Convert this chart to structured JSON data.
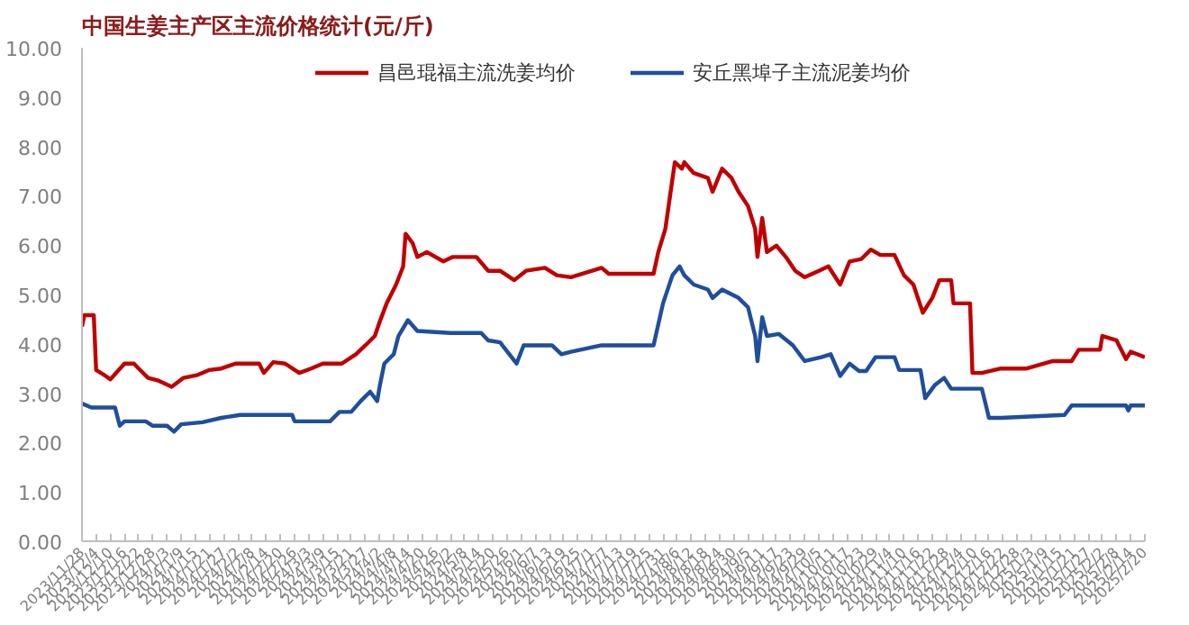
{
  "chart_data": {
    "type": "line",
    "title": "中国生姜主产区主流价格统计(元/斤)",
    "legend": "top",
    "grid": false,
    "line_style": "solid",
    "ylim": [
      0,
      10
    ],
    "yticks": [
      {
        "value": 0,
        "label": "0.00"
      },
      {
        "value": 1,
        "label": "1.00"
      },
      {
        "value": 2,
        "label": "2.00"
      },
      {
        "value": 3,
        "label": "3.00"
      },
      {
        "value": 4,
        "label": "4.00"
      },
      {
        "value": 5,
        "label": "5.00"
      },
      {
        "value": 6,
        "label": "6.00"
      },
      {
        "value": 7,
        "label": "7.00"
      },
      {
        "value": 8,
        "label": "8.00"
      },
      {
        "value": 9,
        "label": "9.00"
      },
      {
        "value": 10,
        "label": "10.00"
      }
    ],
    "xlim": [
      "2023-11-28",
      "2025-02-20"
    ],
    "xticks": [
      {
        "value": "2023-11-28",
        "label": "2023/11/28"
      },
      {
        "value": "2023-12-04",
        "label": "2023/12/4"
      },
      {
        "value": "2023-12-10",
        "label": "2023/12/10"
      },
      {
        "value": "2023-12-16",
        "label": "2023/12/16"
      },
      {
        "value": "2023-12-22",
        "label": "2023/12/22"
      },
      {
        "value": "2023-12-28",
        "label": "2023/12/28"
      },
      {
        "value": "2024-01-03",
        "label": "2024/1/3"
      },
      {
        "value": "2024-01-09",
        "label": "2024/1/9"
      },
      {
        "value": "2024-01-15",
        "label": "2024/1/15"
      },
      {
        "value": "2024-01-21",
        "label": "2024/1/21"
      },
      {
        "value": "2024-01-27",
        "label": "2024/1/27"
      },
      {
        "value": "2024-02-02",
        "label": "2024/2/2"
      },
      {
        "value": "2024-02-08",
        "label": "2024/2/8"
      },
      {
        "value": "2024-02-14",
        "label": "2024/2/14"
      },
      {
        "value": "2024-02-20",
        "label": "2024/2/20"
      },
      {
        "value": "2024-02-26",
        "label": "2024/2/26"
      },
      {
        "value": "2024-03-03",
        "label": "2024/3/3"
      },
      {
        "value": "2024-03-09",
        "label": "2024/3/9"
      },
      {
        "value": "2024-03-15",
        "label": "2024/3/15"
      },
      {
        "value": "2024-03-21",
        "label": "2024/3/21"
      },
      {
        "value": "2024-03-27",
        "label": "2024/3/27"
      },
      {
        "value": "2024-04-02",
        "label": "2024/4/2"
      },
      {
        "value": "2024-04-08",
        "label": "2024/4/8"
      },
      {
        "value": "2024-04-14",
        "label": "2024/4/14"
      },
      {
        "value": "2024-04-20",
        "label": "2024/4/20"
      },
      {
        "value": "2024-04-26",
        "label": "2024/4/26"
      },
      {
        "value": "2024-05-02",
        "label": "2024/5/2"
      },
      {
        "value": "2024-05-08",
        "label": "2024/5/8"
      },
      {
        "value": "2024-05-14",
        "label": "2024/5/14"
      },
      {
        "value": "2024-05-20",
        "label": "2024/5/20"
      },
      {
        "value": "2024-05-26",
        "label": "2024/5/26"
      },
      {
        "value": "2024-06-01",
        "label": "2024/6/1"
      },
      {
        "value": "2024-06-07",
        "label": "2024/6/7"
      },
      {
        "value": "2024-06-13",
        "label": "2024/6/13"
      },
      {
        "value": "2024-06-19",
        "label": "2024/6/19"
      },
      {
        "value": "2024-06-25",
        "label": "2024/6/25"
      },
      {
        "value": "2024-07-01",
        "label": "2024/7/1"
      },
      {
        "value": "2024-07-07",
        "label": "2024/7/7"
      },
      {
        "value": "2024-07-13",
        "label": "2024/7/13"
      },
      {
        "value": "2024-07-19",
        "label": "2024/7/19"
      },
      {
        "value": "2024-07-25",
        "label": "2024/7/25"
      },
      {
        "value": "2024-07-31",
        "label": "2024/7/31"
      },
      {
        "value": "2024-08-06",
        "label": "2024/8/6"
      },
      {
        "value": "2024-08-12",
        "label": "2024/8/12"
      },
      {
        "value": "2024-08-18",
        "label": "2024/8/18"
      },
      {
        "value": "2024-08-24",
        "label": "2024/8/24"
      },
      {
        "value": "2024-08-30",
        "label": "2024/8/30"
      },
      {
        "value": "2024-09-05",
        "label": "2024/9/5"
      },
      {
        "value": "2024-09-11",
        "label": "2024/9/11"
      },
      {
        "value": "2024-09-17",
        "label": "2024/9/17"
      },
      {
        "value": "2024-09-23",
        "label": "2024/9/23"
      },
      {
        "value": "2024-09-29",
        "label": "2024/9/29"
      },
      {
        "value": "2024-10-05",
        "label": "2024/10/5"
      },
      {
        "value": "2024-10-11",
        "label": "2024/10/11"
      },
      {
        "value": "2024-10-17",
        "label": "2024/10/17"
      },
      {
        "value": "2024-10-23",
        "label": "2024/10/23"
      },
      {
        "value": "2024-10-29",
        "label": "2024/10/29"
      },
      {
        "value": "2024-11-04",
        "label": "2024/11/4"
      },
      {
        "value": "2024-11-10",
        "label": "2024/11/10"
      },
      {
        "value": "2024-11-16",
        "label": "2024/11/16"
      },
      {
        "value": "2024-11-22",
        "label": "2024/11/22"
      },
      {
        "value": "2024-11-28",
        "label": "2024/11/28"
      },
      {
        "value": "2024-12-04",
        "label": "2024/12/4"
      },
      {
        "value": "2024-12-10",
        "label": "2024/12/10"
      },
      {
        "value": "2024-12-16",
        "label": "2024/12/16"
      },
      {
        "value": "2024-12-22",
        "label": "2024/12/22"
      },
      {
        "value": "2024-12-28",
        "label": "2024/12/28"
      },
      {
        "value": "2025-01-03",
        "label": "2025/1/3"
      },
      {
        "value": "2025-01-09",
        "label": "2025/1/9"
      },
      {
        "value": "2025-01-15",
        "label": "2025/1/15"
      },
      {
        "value": "2025-01-21",
        "label": "2025/1/21"
      },
      {
        "value": "2025-01-27",
        "label": "2025/1/27"
      },
      {
        "value": "2025-02-02",
        "label": "2025/2/2"
      },
      {
        "value": "2025-02-08",
        "label": "2025/2/8"
      },
      {
        "value": "2025-02-14",
        "label": "2025/2/14"
      },
      {
        "value": "2025-02-20",
        "label": "2025/2/20"
      }
    ],
    "series": [
      {
        "name": "昌邑琨福主流洗姜均价",
        "color": "#c00000",
        "x": [
          "2023-11-28",
          "2023-11-29",
          "2023-12-03",
          "2023-12-04",
          "2023-12-08",
          "2023-12-10",
          "2023-12-16",
          "2023-12-20",
          "2023-12-22",
          "2023-12-26",
          "2023-12-30",
          "2024-01-05",
          "2024-01-10",
          "2024-01-16",
          "2024-01-21",
          "2024-01-26",
          "2024-02-01",
          "2024-02-11",
          "2024-02-13",
          "2024-02-17",
          "2024-02-22",
          "2024-02-28",
          "2024-03-04",
          "2024-03-09",
          "2024-03-17",
          "2024-03-23",
          "2024-03-27",
          "2024-03-31",
          "2024-04-02",
          "2024-04-05",
          "2024-04-09",
          "2024-04-12",
          "2024-04-13",
          "2024-04-16",
          "2024-04-18",
          "2024-04-22",
          "2024-04-29",
          "2024-05-03",
          "2024-05-13",
          "2024-05-18",
          "2024-05-23",
          "2024-05-29",
          "2024-06-03",
          "2024-06-11",
          "2024-06-16",
          "2024-06-22",
          "2024-07-05",
          "2024-07-08",
          "2024-07-27",
          "2024-07-29",
          "2024-08-01",
          "2024-08-05",
          "2024-08-08",
          "2024-08-09",
          "2024-08-13",
          "2024-08-19",
          "2024-08-21",
          "2024-08-25",
          "2024-08-29",
          "2024-09-01",
          "2024-09-05",
          "2024-09-08",
          "2024-09-09",
          "2024-09-11",
          "2024-09-13",
          "2024-09-17",
          "2024-09-21",
          "2024-09-25",
          "2024-09-29",
          "2024-10-05",
          "2024-10-09",
          "2024-10-14",
          "2024-10-18",
          "2024-10-23",
          "2024-10-27",
          "2024-10-31",
          "2024-11-06",
          "2024-11-10",
          "2024-11-14",
          "2024-11-18",
          "2024-11-22",
          "2024-11-25",
          "2024-11-30",
          "2024-12-01",
          "2024-12-08",
          "2024-12-09",
          "2024-12-13",
          "2024-12-21",
          "2025-01-01",
          "2025-01-12",
          "2025-01-20",
          "2025-01-23",
          "2025-02-01",
          "2025-02-02",
          "2025-02-08",
          "2025-02-12",
          "2025-02-14",
          "2025-02-20"
        ],
        "values": [
          4.35,
          4.58,
          4.58,
          3.47,
          3.35,
          3.28,
          3.6,
          3.6,
          3.5,
          3.31,
          3.26,
          3.13,
          3.31,
          3.37,
          3.47,
          3.5,
          3.6,
          3.6,
          3.41,
          3.63,
          3.6,
          3.41,
          3.5,
          3.6,
          3.6,
          3.79,
          3.97,
          4.16,
          4.44,
          4.82,
          5.2,
          5.57,
          6.23,
          6.04,
          5.76,
          5.86,
          5.67,
          5.76,
          5.76,
          5.48,
          5.48,
          5.29,
          5.48,
          5.54,
          5.39,
          5.35,
          5.54,
          5.42,
          5.42,
          5.86,
          6.33,
          7.68,
          7.55,
          7.68,
          7.46,
          7.36,
          7.08,
          7.55,
          7.36,
          7.08,
          6.79,
          6.33,
          5.76,
          6.55,
          5.86,
          5.99,
          5.76,
          5.48,
          5.35,
          5.48,
          5.57,
          5.2,
          5.67,
          5.72,
          5.91,
          5.8,
          5.8,
          5.39,
          5.2,
          4.63,
          4.93,
          5.29,
          5.29,
          4.82,
          4.82,
          3.41,
          3.41,
          3.5,
          3.5,
          3.65,
          3.65,
          3.88,
          3.88,
          4.16,
          4.07,
          3.69,
          3.84,
          3.73
        ]
      },
      {
        "name": "安丘黑埠子主流泥姜均价",
        "color": "#1f4e9c",
        "x": [
          "2023-11-28",
          "2023-12-02",
          "2023-12-12",
          "2023-12-14",
          "2023-12-16",
          "2023-12-25",
          "2023-12-28",
          "2024-01-03",
          "2024-01-06",
          "2024-01-09",
          "2024-01-18",
          "2024-01-26",
          "2024-02-03",
          "2024-02-25",
          "2024-02-26",
          "2024-03-12",
          "2024-03-16",
          "2024-03-21",
          "2024-03-25",
          "2024-03-29",
          "2024-04-01",
          "2024-04-02",
          "2024-04-04",
          "2024-04-08",
          "2024-04-10",
          "2024-04-14",
          "2024-04-18",
          "2024-05-02",
          "2024-05-15",
          "2024-05-18",
          "2024-05-23",
          "2024-05-30",
          "2024-06-02",
          "2024-06-14",
          "2024-06-18",
          "2024-06-22",
          "2024-07-05",
          "2024-07-27",
          "2024-07-31",
          "2024-08-04",
          "2024-08-07",
          "2024-08-09",
          "2024-08-13",
          "2024-08-19",
          "2024-08-21",
          "2024-08-25",
          "2024-09-01",
          "2024-09-05",
          "2024-09-08",
          "2024-09-09",
          "2024-09-11",
          "2024-09-13",
          "2024-09-18",
          "2024-09-24",
          "2024-09-29",
          "2024-10-06",
          "2024-10-10",
          "2024-10-14",
          "2024-10-18",
          "2024-10-22",
          "2024-10-25",
          "2024-10-29",
          "2024-11-06",
          "2024-11-08",
          "2024-11-17",
          "2024-11-19",
          "2024-11-23",
          "2024-11-27",
          "2024-11-30",
          "2024-12-13",
          "2024-12-16",
          "2024-12-21",
          "2025-01-17",
          "2025-01-20",
          "2025-02-12",
          "2025-02-13",
          "2025-02-14",
          "2025-02-20"
        ],
        "values": [
          2.79,
          2.71,
          2.71,
          2.34,
          2.43,
          2.43,
          2.34,
          2.34,
          2.22,
          2.37,
          2.41,
          2.5,
          2.56,
          2.56,
          2.43,
          2.43,
          2.62,
          2.62,
          2.84,
          3.03,
          2.84,
          3.13,
          3.6,
          3.79,
          4.16,
          4.48,
          4.26,
          4.22,
          4.22,
          4.07,
          4.03,
          3.6,
          3.97,
          3.97,
          3.79,
          3.84,
          3.97,
          3.97,
          4.82,
          5.39,
          5.57,
          5.39,
          5.2,
          5.1,
          4.93,
          5.1,
          4.93,
          4.74,
          4.16,
          3.65,
          4.54,
          4.16,
          4.2,
          3.97,
          3.65,
          3.73,
          3.79,
          3.35,
          3.6,
          3.45,
          3.45,
          3.73,
          3.73,
          3.47,
          3.47,
          2.9,
          3.16,
          3.31,
          3.09,
          3.09,
          2.5,
          2.5,
          2.56,
          2.75,
          2.75,
          2.65,
          2.75,
          2.75
        ]
      }
    ]
  }
}
